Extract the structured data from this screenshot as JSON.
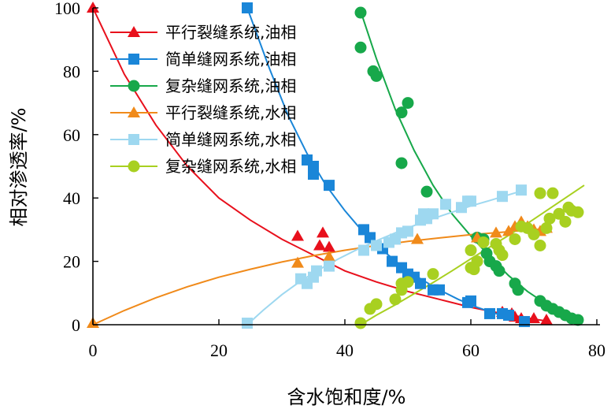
{
  "chart_data": {
    "type": "scatter",
    "xlabel": "含水饱和度/%",
    "ylabel": "相对渗透率/%",
    "xlim": [
      0,
      80
    ],
    "ylim": [
      0,
      100
    ],
    "xticks": [
      0,
      20,
      40,
      60,
      80
    ],
    "yticks": [
      0,
      20,
      40,
      60,
      80,
      100
    ],
    "grid": false,
    "legend_position": "top-left",
    "series": [
      {
        "name": "平行裂缝系统,油相",
        "color": "#e8101c",
        "marker": "triangle",
        "points": [
          [
            0,
            100
          ],
          [
            32.5,
            28
          ],
          [
            36,
            25
          ],
          [
            36.5,
            29
          ],
          [
            37.5,
            24.5
          ],
          [
            65,
            4
          ],
          [
            66.5,
            3.5
          ],
          [
            67,
            2.5
          ],
          [
            68,
            2
          ],
          [
            70,
            2
          ],
          [
            72,
            1.5
          ]
        ],
        "curve": [
          [
            0,
            100
          ],
          [
            5,
            79
          ],
          [
            10,
            63
          ],
          [
            15,
            50
          ],
          [
            20,
            40
          ],
          [
            25,
            33
          ],
          [
            30,
            27
          ],
          [
            35,
            22
          ],
          [
            40,
            17
          ],
          [
            45,
            13.5
          ],
          [
            50,
            10.5
          ],
          [
            55,
            8
          ],
          [
            60,
            5.5
          ],
          [
            65,
            3.5
          ],
          [
            70,
            1.8
          ],
          [
            72,
            1.2
          ]
        ]
      },
      {
        "name": "简单缝网系统,油相",
        "color": "#1a86d8",
        "marker": "square",
        "points": [
          [
            24.5,
            100
          ],
          [
            34,
            52
          ],
          [
            35,
            50
          ],
          [
            35,
            47.5
          ],
          [
            37.5,
            44
          ],
          [
            43,
            30
          ],
          [
            44,
            27.5
          ],
          [
            46,
            24
          ],
          [
            47.5,
            20
          ],
          [
            49,
            18
          ],
          [
            50,
            16
          ],
          [
            51,
            15
          ],
          [
            52,
            13
          ],
          [
            54,
            11
          ],
          [
            55,
            11
          ],
          [
            59.5,
            7
          ],
          [
            60,
            7.5
          ],
          [
            63,
            3.5
          ],
          [
            65,
            3.5
          ],
          [
            66,
            3
          ],
          [
            68.5,
            1
          ]
        ],
        "curve": [
          [
            24.5,
            100
          ],
          [
            28,
            81
          ],
          [
            31,
            66
          ],
          [
            34,
            54
          ],
          [
            37,
            44
          ],
          [
            40,
            36
          ],
          [
            43,
            29
          ],
          [
            46,
            23.5
          ],
          [
            49,
            18.5
          ],
          [
            52,
            14.5
          ],
          [
            55,
            11
          ],
          [
            58,
            8
          ],
          [
            61,
            5.5
          ],
          [
            64,
            3.5
          ],
          [
            67,
            1.8
          ],
          [
            69,
            1
          ]
        ]
      },
      {
        "name": "复杂缝网系统,油相",
        "color": "#17a84a",
        "marker": "circle",
        "points": [
          [
            42.5,
            98.5
          ],
          [
            42.5,
            87.5
          ],
          [
            44.5,
            80
          ],
          [
            45,
            78.5
          ],
          [
            49,
            67
          ],
          [
            50,
            70
          ],
          [
            49,
            51
          ],
          [
            53,
            42
          ],
          [
            61,
            27.5
          ],
          [
            62,
            27
          ],
          [
            62.5,
            22.5
          ],
          [
            63,
            20
          ],
          [
            64,
            18.5
          ],
          [
            64.5,
            17
          ],
          [
            67,
            13
          ],
          [
            67.5,
            11
          ],
          [
            71,
            7.5
          ],
          [
            72,
            6
          ],
          [
            73,
            5
          ],
          [
            74,
            4
          ],
          [
            75,
            3
          ],
          [
            76,
            2
          ],
          [
            77,
            1.5
          ]
        ],
        "curve": [
          [
            42.5,
            99
          ],
          [
            45,
            84
          ],
          [
            48,
            68
          ],
          [
            51,
            55
          ],
          [
            54,
            44
          ],
          [
            57,
            35
          ],
          [
            60,
            28
          ],
          [
            63,
            21.5
          ],
          [
            66,
            15.5
          ],
          [
            69,
            10.5
          ],
          [
            72,
            6.5
          ],
          [
            75,
            3.5
          ],
          [
            77,
            1.5
          ]
        ]
      },
      {
        "name": "平行裂缝系统,水相",
        "color": "#f08a1a",
        "marker": "triangle",
        "points": [
          [
            0,
            0.5
          ],
          [
            32.5,
            19.5
          ],
          [
            37.5,
            21.5
          ],
          [
            51.5,
            27
          ],
          [
            61,
            27.5
          ],
          [
            64,
            29
          ],
          [
            66,
            29.5
          ],
          [
            67,
            31
          ],
          [
            68,
            32.5
          ],
          [
            69,
            31
          ],
          [
            70,
            30
          ],
          [
            71,
            29.5
          ],
          [
            72,
            30.5
          ]
        ],
        "curve": [
          [
            0,
            0
          ],
          [
            5,
            4.5
          ],
          [
            10,
            8.5
          ],
          [
            15,
            12
          ],
          [
            20,
            15
          ],
          [
            25,
            17.5
          ],
          [
            30,
            19.8
          ],
          [
            35,
            21.8
          ],
          [
            40,
            23.5
          ],
          [
            45,
            25
          ],
          [
            50,
            26.3
          ],
          [
            55,
            27.4
          ],
          [
            60,
            28.4
          ],
          [
            65,
            29.2
          ],
          [
            70,
            30
          ],
          [
            72,
            30.3
          ]
        ]
      },
      {
        "name": "简单缝网系统,水相",
        "color": "#9ed8f0",
        "marker": "square",
        "points": [
          [
            24.5,
            0.5
          ],
          [
            33,
            14.5
          ],
          [
            34,
            13
          ],
          [
            35,
            15
          ],
          [
            35.5,
            17
          ],
          [
            37.5,
            18.5
          ],
          [
            43,
            23.5
          ],
          [
            45,
            25
          ],
          [
            47,
            26
          ],
          [
            48,
            27
          ],
          [
            49,
            29
          ],
          [
            50,
            29.5
          ],
          [
            52,
            33
          ],
          [
            52.5,
            35
          ],
          [
            53,
            33.5
          ],
          [
            54,
            35
          ],
          [
            56,
            38
          ],
          [
            58.5,
            37
          ],
          [
            59.5,
            39
          ],
          [
            60,
            39
          ],
          [
            65,
            40.5
          ],
          [
            68,
            42.5
          ]
        ],
        "curve": [
          [
            24.5,
            0
          ],
          [
            27,
            4.5
          ],
          [
            30,
            9.5
          ],
          [
            33,
            13.8
          ],
          [
            36,
            17.5
          ],
          [
            39,
            20.8
          ],
          [
            42,
            23.8
          ],
          [
            45,
            26.5
          ],
          [
            48,
            29
          ],
          [
            51,
            31.3
          ],
          [
            54,
            33.5
          ],
          [
            57,
            35.5
          ],
          [
            60,
            37.5
          ],
          [
            63,
            39.2
          ],
          [
            66,
            41
          ],
          [
            68,
            42.2
          ]
        ]
      },
      {
        "name": "复杂缝网系统,水相",
        "color": "#a8d020",
        "marker": "circle",
        "points": [
          [
            42.5,
            0.5
          ],
          [
            44,
            5
          ],
          [
            45,
            6.5
          ],
          [
            48,
            8
          ],
          [
            49,
            11
          ],
          [
            49,
            13
          ],
          [
            50,
            13.5
          ],
          [
            54,
            16
          ],
          [
            60,
            23.5
          ],
          [
            60,
            18
          ],
          [
            60.5,
            17.5
          ],
          [
            61,
            20
          ],
          [
            62,
            26
          ],
          [
            64,
            25.5
          ],
          [
            64.5,
            23.5
          ],
          [
            65,
            22
          ],
          [
            67,
            27
          ],
          [
            68,
            31
          ],
          [
            69,
            30.5
          ],
          [
            70,
            28.5
          ],
          [
            71,
            41.5
          ],
          [
            71,
            25
          ],
          [
            72,
            30.5
          ],
          [
            72.5,
            33.5
          ],
          [
            73,
            41.5
          ],
          [
            74,
            35
          ],
          [
            75,
            32.5
          ],
          [
            75.5,
            37
          ],
          [
            76,
            36
          ],
          [
            77,
            35.5
          ]
        ],
        "curve": [
          [
            42.5,
            0
          ],
          [
            45,
            3
          ],
          [
            48,
            6.3
          ],
          [
            51,
            9.8
          ],
          [
            54,
            13.3
          ],
          [
            57,
            17
          ],
          [
            60,
            20.8
          ],
          [
            63,
            24.5
          ],
          [
            66,
            28.2
          ],
          [
            69,
            32
          ],
          [
            72,
            36
          ],
          [
            75,
            40
          ],
          [
            78,
            44
          ]
        ]
      }
    ]
  }
}
